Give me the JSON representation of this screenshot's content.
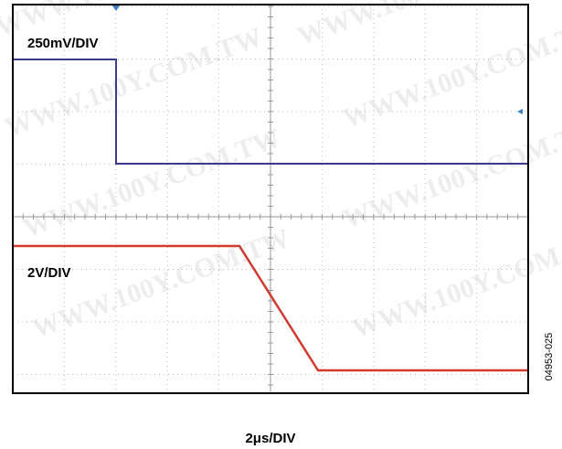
{
  "channel1_scale": "250mV/DIV",
  "channel2_scale": "2V/DIV",
  "time_scale": "2μs/DIV",
  "figure_id": "04953-025",
  "watermark": "WWW.100Y.COM.TW"
}
